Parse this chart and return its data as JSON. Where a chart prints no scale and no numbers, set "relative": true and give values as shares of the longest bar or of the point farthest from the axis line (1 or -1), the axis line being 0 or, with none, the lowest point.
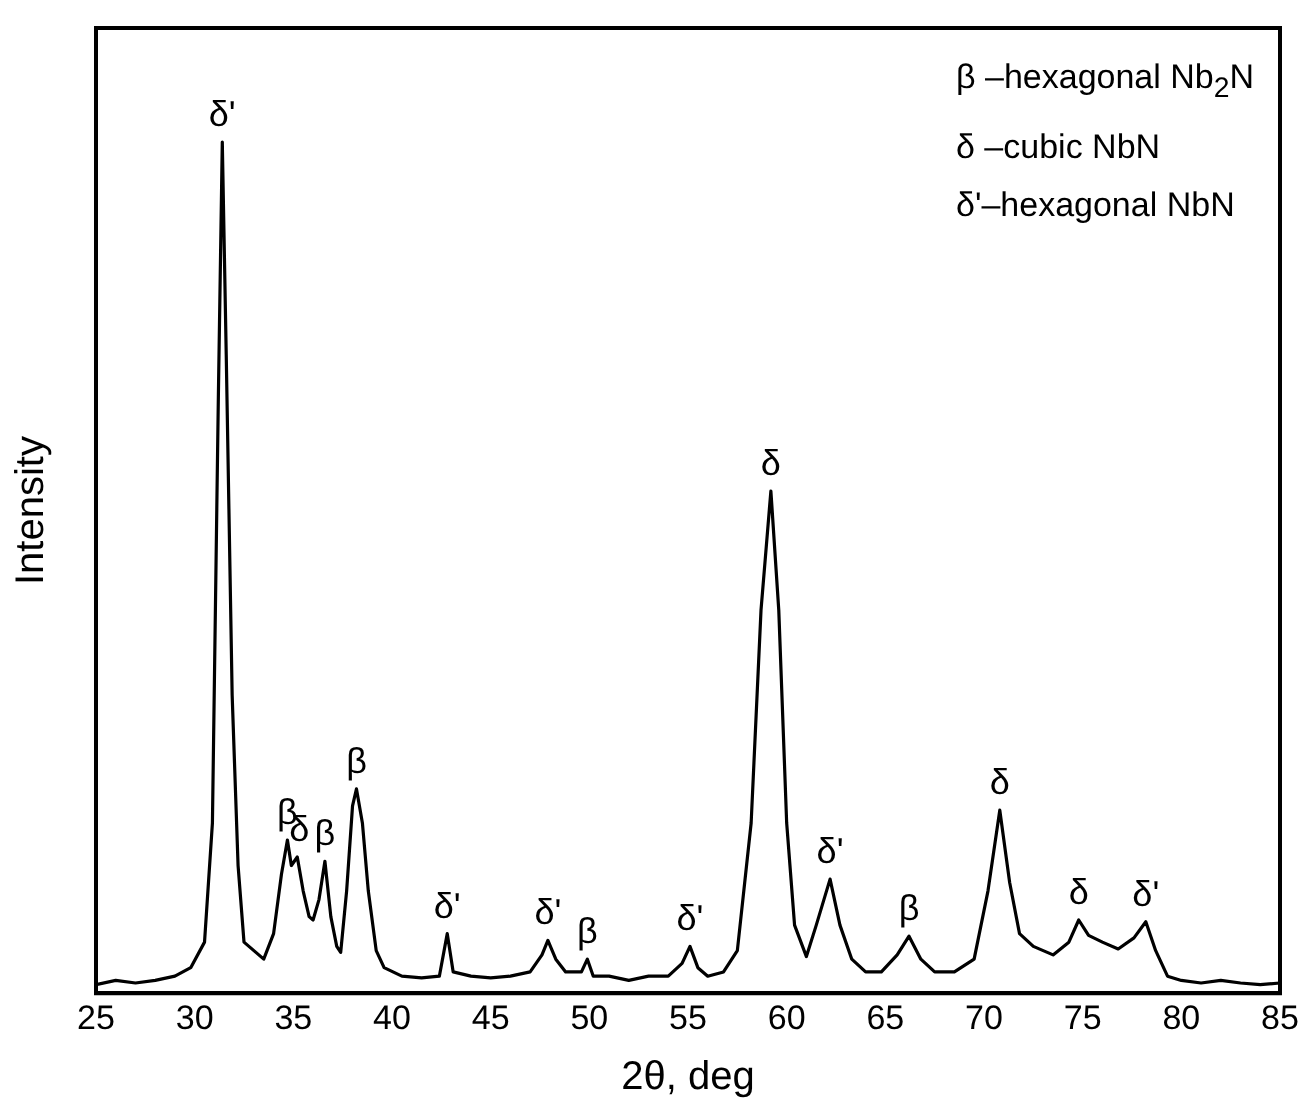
{
  "chart_data": {
    "type": "line",
    "relative": true,
    "xlabel": "2θ, deg",
    "ylabel": "Intensity",
    "color": "#000000",
    "marker": "none",
    "line_style": "solid",
    "grid": false,
    "legend": false,
    "xlim": [
      25,
      85
    ],
    "xticks": [
      25,
      30,
      35,
      40,
      45,
      50,
      55,
      60,
      65,
      70,
      75,
      80,
      85
    ],
    "x": [
      25,
      26,
      27,
      28,
      29,
      29.8,
      30.5,
      30.9,
      31.2,
      31.4,
      31.6,
      31.9,
      32.2,
      32.5,
      33,
      33.5,
      34,
      34.4,
      34.7,
      34.9,
      35.2,
      35.5,
      35.8,
      36,
      36.3,
      36.6,
      36.9,
      37.2,
      37.4,
      37.7,
      38,
      38.2,
      38.5,
      38.8,
      39.2,
      39.6,
      40.5,
      41.5,
      42.4,
      42.8,
      43.1,
      44,
      45,
      46,
      47,
      47.6,
      47.9,
      48.3,
      48.8,
      49.6,
      49.9,
      50.2,
      51,
      52,
      53,
      54,
      54.7,
      55.1,
      55.5,
      56,
      56.8,
      57.5,
      58.2,
      58.7,
      59.2,
      59.6,
      60,
      60.4,
      61,
      61.5,
      62.2,
      62.7,
      63.3,
      64,
      64.8,
      65.6,
      66.2,
      66.8,
      67.5,
      68.5,
      69.5,
      70.2,
      70.8,
      71.3,
      71.8,
      72.5,
      73.5,
      74.3,
      74.8,
      75.3,
      76,
      76.8,
      77.6,
      78.2,
      78.7,
      79.3,
      80,
      81,
      82,
      83,
      84,
      85
    ],
    "values": [
      0.01,
      0.015,
      0.012,
      0.015,
      0.02,
      0.03,
      0.06,
      0.2,
      0.7,
      1,
      0.75,
      0.35,
      0.15,
      0.06,
      0.05,
      0.04,
      0.07,
      0.14,
      0.18,
      0.15,
      0.16,
      0.12,
      0.09,
      0.086,
      0.11,
      0.155,
      0.09,
      0.055,
      0.048,
      0.12,
      0.22,
      0.24,
      0.2,
      0.12,
      0.05,
      0.03,
      0.02,
      0.018,
      0.02,
      0.07,
      0.025,
      0.02,
      0.018,
      0.02,
      0.025,
      0.045,
      0.062,
      0.04,
      0.025,
      0.025,
      0.04,
      0.02,
      0.02,
      0.015,
      0.02,
      0.02,
      0.035,
      0.055,
      0.03,
      0.02,
      0.025,
      0.05,
      0.2,
      0.45,
      0.59,
      0.45,
      0.2,
      0.08,
      0.043,
      0.08,
      0.134,
      0.08,
      0.04,
      0.025,
      0.025,
      0.045,
      0.067,
      0.04,
      0.025,
      0.025,
      0.04,
      0.12,
      0.215,
      0.13,
      0.07,
      0.055,
      0.045,
      0.06,
      0.086,
      0.068,
      0.06,
      0.052,
      0.065,
      0.084,
      0.05,
      0.02,
      0.015,
      0.012,
      0.015,
      0.012,
      0.01,
      0.012
    ],
    "annotations": [
      {
        "text": "δ'",
        "x": 31.4,
        "y": 1
      },
      {
        "text": "β",
        "x": 34.7,
        "y": 0.18
      },
      {
        "text": "δ",
        "x": 35.3,
        "y": 0.16
      },
      {
        "text": "β",
        "x": 36.6,
        "y": 0.155
      },
      {
        "text": "β",
        "x": 38.2,
        "y": 0.24
      },
      {
        "text": "δ'",
        "x": 42.8,
        "y": 0.07
      },
      {
        "text": "δ'",
        "x": 47.9,
        "y": 0.062
      },
      {
        "text": "β",
        "x": 49.9,
        "y": 0.04
      },
      {
        "text": "δ'",
        "x": 55.1,
        "y": 0.055
      },
      {
        "text": "δ",
        "x": 59.2,
        "y": 0.59
      },
      {
        "text": "δ'",
        "x": 62.2,
        "y": 0.134
      },
      {
        "text": "β",
        "x": 66.2,
        "y": 0.067
      },
      {
        "text": "δ",
        "x": 70.8,
        "y": 0.215
      },
      {
        "text": "δ",
        "x": 74.8,
        "y": 0.086
      },
      {
        "text": "δ'",
        "x": 78.2,
        "y": 0.084
      },
      "β –hexagonal Nb$_{2}$N",
      "δ –cubic NbN",
      "δ'–hexagonal NbN"
    ]
  }
}
